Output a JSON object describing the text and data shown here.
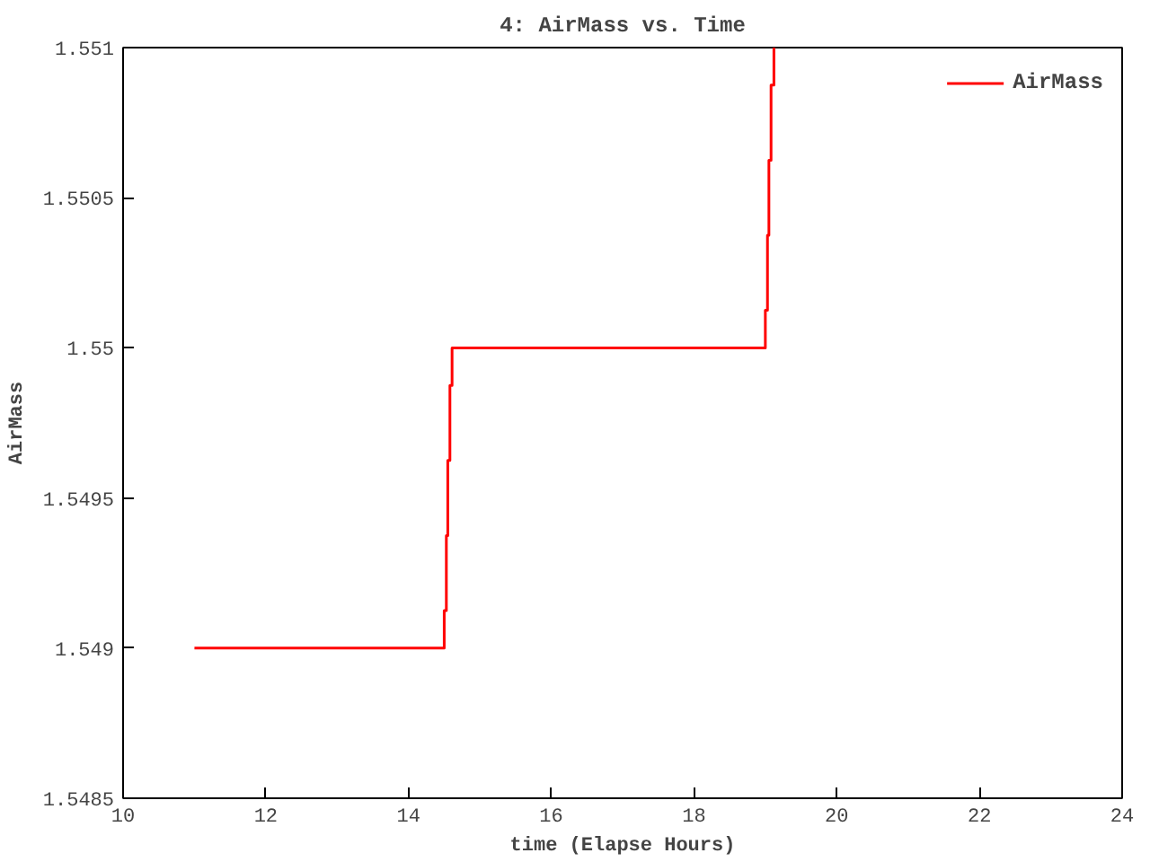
{
  "chart_data": {
    "type": "step",
    "title": "4: AirMass vs. Time",
    "xlabel": "time (Elapse Hours)",
    "ylabel": "AirMass",
    "x": [
      11,
      14.5,
      14.53,
      14.55,
      14.58,
      14.61,
      19.0,
      19.03,
      19.05,
      19.08,
      19.12
    ],
    "series": [
      {
        "name": "AirMass",
        "color": "#ff0000",
        "values": [
          1.549,
          1.549125,
          1.549375,
          1.549625,
          1.549875,
          1.55,
          1.550125,
          1.550375,
          1.550625,
          1.550875,
          1.551
        ]
      }
    ],
    "xlim": [
      10,
      24
    ],
    "ylim": [
      1.5485,
      1.551
    ],
    "xticks": [
      10,
      12,
      14,
      16,
      18,
      20,
      22,
      24
    ],
    "yticks": [
      1.5485,
      1.549,
      1.5495,
      1.55,
      1.5505,
      1.551
    ],
    "grid": false,
    "legend": "top right"
  }
}
